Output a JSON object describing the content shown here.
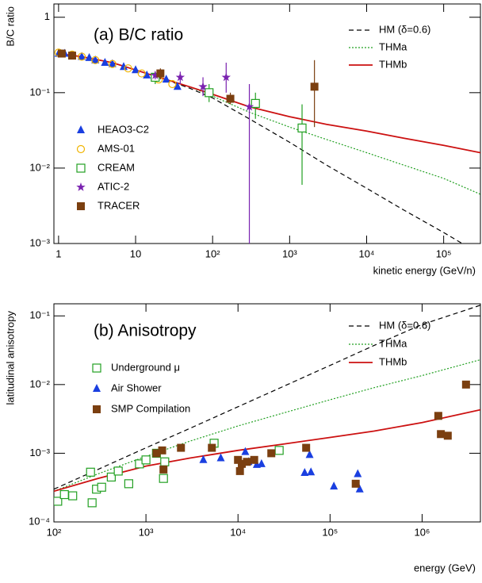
{
  "chart_data": [
    {
      "type": "line",
      "title": "(a)  B/C ratio",
      "x_label": "kinetic energy (GeV/n)",
      "y_label": "B/C ratio",
      "xscale": "log",
      "yscale": "log",
      "xlim": [
        0.87,
        300000
      ],
      "ylim": [
        0.001,
        1.5
      ],
      "xticks": [
        1,
        10,
        {
          "value": 100,
          "label": "10²"
        },
        {
          "value": 1000,
          "label": "10³"
        },
        {
          "value": 10000,
          "label": "10⁴"
        },
        {
          "value": 100000,
          "label": "10⁵"
        }
      ],
      "yticks": [
        {
          "value": 0.001,
          "label": "10⁻³"
        },
        {
          "value": 0.01,
          "label": "10⁻²"
        },
        {
          "value": 0.1,
          "label": "10⁻¹"
        },
        1
      ],
      "series": [
        {
          "name": "HM (δ=0.6)",
          "color": "#000000",
          "dash": "dashed",
          "x": [
            1,
            2,
            5,
            10,
            20,
            50,
            100,
            300,
            1000,
            3000,
            10000,
            30000,
            100000,
            300000
          ],
          "values": [
            0.33,
            0.3,
            0.25,
            0.2,
            0.16,
            0.115,
            0.085,
            0.045,
            0.022,
            0.011,
            0.0054,
            0.0028,
            0.0014,
            0.00072
          ]
        },
        {
          "name": "THMa",
          "color": "#22a022",
          "dash": "dotted",
          "x": [
            1,
            2,
            5,
            10,
            20,
            50,
            100,
            300,
            1000,
            3000,
            10000,
            30000,
            100000,
            300000
          ],
          "values": [
            0.33,
            0.3,
            0.25,
            0.2,
            0.16,
            0.12,
            0.09,
            0.055,
            0.035,
            0.024,
            0.016,
            0.011,
            0.0073,
            0.0045
          ]
        },
        {
          "name": "THMb",
          "color": "#cc1111",
          "dash": "solid",
          "x": [
            1,
            2,
            5,
            10,
            20,
            50,
            100,
            300,
            1000,
            3000,
            10000,
            30000,
            100000,
            300000
          ],
          "values": [
            0.33,
            0.3,
            0.25,
            0.2,
            0.16,
            0.12,
            0.095,
            0.065,
            0.048,
            0.038,
            0.031,
            0.025,
            0.02,
            0.016
          ]
        },
        {
          "name": "HEAO3-C2",
          "color": "#1a3fe0",
          "marker": "triangle",
          "x": [
            1,
            1.2,
            1.5,
            2,
            2.5,
            3,
            4,
            5,
            7,
            10,
            14,
            25,
            35
          ],
          "values": [
            0.33,
            0.33,
            0.31,
            0.3,
            0.29,
            0.27,
            0.25,
            0.24,
            0.22,
            0.2,
            0.17,
            0.15,
            0.12
          ]
        },
        {
          "name": "AMS-01",
          "color": "#f0b400",
          "marker": "circle",
          "x": [
            1,
            1.5,
            2,
            3,
            5,
            8,
            12,
            20,
            30
          ],
          "values": [
            0.34,
            0.32,
            0.3,
            0.27,
            0.24,
            0.21,
            0.18,
            0.15,
            0.13
          ]
        },
        {
          "name": "CREAM",
          "color": "#22a022",
          "marker": "square-open",
          "x": [
            18,
            90,
            360,
            1450
          ],
          "values": [
            0.16,
            0.1,
            0.072,
            0.034
          ],
          "err_low": [
            0.13,
            0.075,
            0.045,
            0.006
          ],
          "err_high": [
            0.19,
            0.13,
            0.1,
            0.07
          ]
        },
        {
          "name": "ATIC-2",
          "color": "#7a22b0",
          "marker": "star",
          "x": [
            18,
            38,
            75,
            150,
            300
          ],
          "values": [
            0.17,
            0.16,
            0.12,
            0.16,
            0.065
          ],
          "err_low": [
            0.15,
            0.13,
            0.09,
            0.1,
            0.001
          ],
          "err_high": [
            0.19,
            0.19,
            0.16,
            0.25,
            0.13
          ]
        },
        {
          "name": "TRACER",
          "color": "#7b3f10",
          "marker": "square",
          "x": [
            1.1,
            1.5,
            21,
            170,
            2100
          ],
          "values": [
            0.33,
            0.31,
            0.18,
            0.083,
            0.12
          ],
          "err_low": [
            0.31,
            0.29,
            0.15,
            0.07,
            0.035
          ],
          "err_high": [
            0.35,
            0.33,
            0.21,
            0.1,
            0.27
          ]
        }
      ]
    },
    {
      "type": "line",
      "title": "(b)  Anisotropy",
      "x_label": "energy (GeV)",
      "y_label": "latitudinal anisotropy",
      "xscale": "log",
      "yscale": "log",
      "xlim": [
        100,
        4300000
      ],
      "ylim": [
        0.0001,
        0.15
      ],
      "xticks": [
        {
          "value": 100,
          "label": "10²"
        },
        {
          "value": 1000,
          "label": "10³"
        },
        {
          "value": 10000,
          "label": "10⁴"
        },
        {
          "value": 100000,
          "label": "10⁵"
        },
        {
          "value": 1000000,
          "label": "10⁶"
        }
      ],
      "yticks": [
        {
          "value": 0.0001,
          "label": "10⁻⁴"
        },
        {
          "value": 0.001,
          "label": "10⁻³"
        },
        {
          "value": 0.01,
          "label": "10⁻²"
        },
        {
          "value": 0.1,
          "label": "10⁻¹"
        }
      ],
      "series": [
        {
          "name": "HM (δ=0.6)",
          "color": "#000000",
          "dash": "dashed",
          "x": [
            100,
            300,
            1000,
            3000,
            10000,
            30000,
            100000,
            300000,
            1000000,
            4300000
          ],
          "values": [
            0.0003,
            0.00058,
            0.0012,
            0.0023,
            0.00475,
            0.0092,
            0.019,
            0.037,
            0.075,
            0.143
          ]
        },
        {
          "name": "THMa",
          "color": "#22a022",
          "dash": "dotted",
          "x": [
            100,
            300,
            1000,
            3000,
            10000,
            30000,
            100000,
            300000,
            1000000,
            4300000
          ],
          "values": [
            0.00028,
            0.0005,
            0.0009,
            0.0015,
            0.0025,
            0.0038,
            0.006,
            0.009,
            0.0135,
            0.023
          ]
        },
        {
          "name": "THMb",
          "color": "#cc1111",
          "dash": "solid",
          "x": [
            100,
            300,
            1000,
            3000,
            10000,
            30000,
            100000,
            300000,
            1000000,
            4300000
          ],
          "values": [
            0.00028,
            0.00043,
            0.00065,
            0.00085,
            0.0011,
            0.00135,
            0.0017,
            0.0021,
            0.0028,
            0.0043
          ]
        },
        {
          "name": "Underground μ",
          "color": "#22a022",
          "marker": "square-open",
          "x": [
            110,
            130,
            160,
            250,
            260,
            290,
            330,
            420,
            500,
            650,
            850,
            1000,
            1300,
            1550,
            1600,
            5500,
            28000
          ],
          "values": [
            0.0002,
            0.00025,
            0.00024,
            0.00053,
            0.00019,
            0.0003,
            0.00032,
            0.00045,
            0.00055,
            0.00036,
            0.0007,
            0.0008,
            0.001,
            0.00043,
            0.00075,
            0.0014,
            0.0011
          ]
        },
        {
          "name": "Air Shower",
          "color": "#1a3fe0",
          "marker": "triangle",
          "x": [
            4200,
            6500,
            12000,
            13000,
            16000,
            18000,
            53000,
            60000,
            62000,
            110000,
            200000,
            210000
          ],
          "values": [
            0.0008,
            0.00085,
            0.00105,
            0.00075,
            0.00068,
            0.0007,
            0.00052,
            0.00095,
            0.00053,
            0.00033,
            0.0005,
            0.0003
          ]
        },
        {
          "name": "SMP Compilation",
          "color": "#7b3f10",
          "marker": "square",
          "x": [
            1300,
            1500,
            1550,
            2400,
            5200,
            10000,
            10500,
            11000,
            12500,
            15000,
            23000,
            55000,
            190000,
            1500000,
            1600000,
            1900000,
            3000000
          ],
          "values": [
            0.001,
            0.0011,
            0.00058,
            0.0012,
            0.0012,
            0.0008,
            0.00055,
            0.0007,
            0.00075,
            0.0008,
            0.001,
            0.0012,
            0.00036,
            0.0035,
            0.0019,
            0.0018,
            0.01
          ]
        }
      ]
    }
  ]
}
